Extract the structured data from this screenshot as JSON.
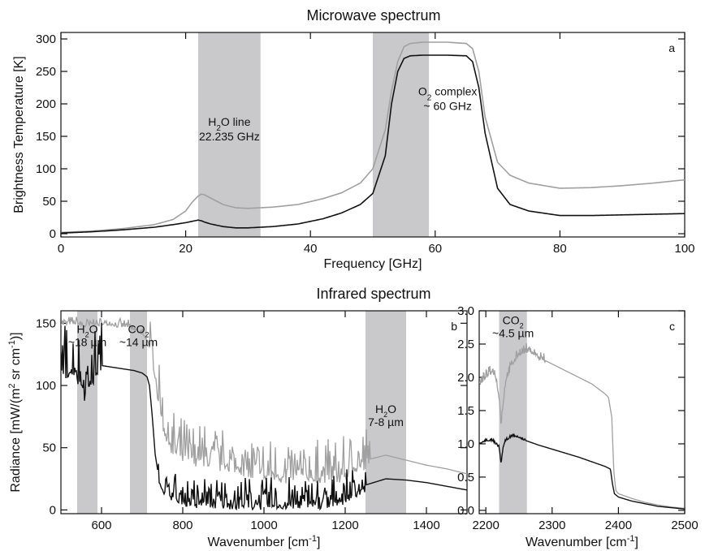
{
  "chart_data": [
    {
      "id": "a",
      "type": "line",
      "title": "Microwave spectrum",
      "panel_label": "a",
      "xlabel": "Frequency [GHz]",
      "ylabel": "Brightness Temperature [K]",
      "xlim": [
        0,
        100
      ],
      "ylim": [
        -5,
        310
      ],
      "xticks": [
        0,
        20,
        40,
        60,
        80,
        100
      ],
      "yticks": [
        0,
        50,
        100,
        150,
        200,
        250,
        300
      ],
      "bands": [
        [
          22,
          32
        ],
        [
          50,
          59
        ]
      ],
      "annotations": [
        {
          "key": "h2o_line",
          "lines": [
            "H",
            "2",
            "O line",
            "22.235 GHz"
          ],
          "x": 27,
          "y": 166
        },
        {
          "key": "o2_complex",
          "lines": [
            "O",
            "2",
            " complex",
            "~ 60 GHz"
          ],
          "x": 62,
          "y": 213
        }
      ],
      "colors": {
        "gray": "#a0a0a0",
        "black": "#111111",
        "band": "#c9c9cc"
      },
      "series": [
        {
          "color": "#a0a0a0",
          "x": [
            0,
            5,
            10,
            15,
            18,
            20,
            21,
            22,
            22.5,
            23,
            24,
            26,
            28,
            30,
            34,
            38,
            42,
            45,
            48,
            50,
            52,
            53,
            54,
            55,
            56,
            58,
            62,
            65,
            66,
            67,
            68,
            70,
            72,
            75,
            80,
            85,
            90,
            95,
            100
          ],
          "y": [
            2,
            4,
            8,
            14,
            22,
            35,
            48,
            58,
            61,
            60,
            55,
            45,
            40,
            39,
            41,
            45,
            54,
            63,
            78,
            100,
            160,
            220,
            265,
            288,
            293,
            295,
            295,
            293,
            285,
            250,
            180,
            110,
            90,
            78,
            70,
            71,
            74,
            78,
            83
          ]
        },
        {
          "color": "#111111",
          "x": [
            0,
            5,
            10,
            15,
            18,
            20,
            21,
            22,
            22.5,
            23,
            24,
            26,
            28,
            30,
            34,
            38,
            42,
            45,
            48,
            50,
            52,
            53,
            54,
            55,
            56,
            58,
            62,
            65,
            66,
            67,
            68,
            70,
            72,
            75,
            80,
            85,
            90,
            95,
            100
          ],
          "y": [
            1,
            3,
            6,
            10,
            14,
            17,
            19,
            21,
            20,
            18,
            15,
            11,
            9,
            9,
            11,
            15,
            23,
            32,
            45,
            62,
            120,
            200,
            250,
            270,
            274,
            275,
            275,
            274,
            265,
            225,
            155,
            70,
            45,
            35,
            28,
            28,
            29,
            30,
            31
          ]
        }
      ]
    },
    {
      "id": "b",
      "type": "line",
      "title": "Infrared spectrum",
      "panel_label": "b",
      "xlabel": "Wavenumber [cm",
      "xlabel_sup": "-1",
      "xlabel_end": "]",
      "ylabel": "Radiance [mW/(m",
      "ylabel_sup1": "2",
      "ylabel_mid": " sr cm",
      "ylabel_sup2": "-1",
      "ylabel_end": ")]",
      "xlim": [
        500,
        1500
      ],
      "ylim": [
        -3,
        160
      ],
      "xticks": [
        600,
        800,
        1000,
        1200,
        1400
      ],
      "yticks": [
        0,
        50,
        100,
        150
      ],
      "bands": [
        [
          540,
          590
        ],
        [
          670,
          712
        ],
        [
          1250,
          1350
        ]
      ],
      "annotations": [
        {
          "key": "h2o_18",
          "l1a": "H",
          "l1s": "2",
          "l1b": "O",
          "l2": "~18 µm",
          "x": 565,
          "y": 142
        },
        {
          "key": "co2_14",
          "l1a": "CO",
          "l1s": "2",
          "l1b": "",
          "l2": "~14 µm",
          "x": 691,
          "y": 142
        },
        {
          "key": "h2o_78",
          "l1a": "H",
          "l1s": "2",
          "l1b": "O",
          "l2": "7-8 µm",
          "x": 1300,
          "y": 78
        }
      ],
      "gray": {
        "x": [
          500,
          540,
          560,
          580,
          600,
          620,
          640,
          660,
          680,
          700,
          715,
          725,
          735,
          745,
          755,
          765,
          780,
          800,
          830,
          860,
          900,
          950,
          1000,
          1050,
          1100,
          1150,
          1200,
          1250,
          1300,
          1350,
          1400,
          1450,
          1500
        ],
        "y": [
          150,
          150,
          148,
          150,
          149,
          150,
          148,
          148,
          145,
          142,
          135,
          120,
          100,
          82,
          65,
          55,
          50,
          46,
          42,
          40,
          38,
          34,
          30,
          28,
          28,
          28,
          30,
          40,
          44,
          40,
          36,
          33,
          29
        ]
      },
      "black": {
        "x": [
          500,
          540,
          560,
          580,
          600,
          620,
          640,
          660,
          680,
          700,
          712,
          718,
          725,
          732,
          740,
          748,
          755,
          765,
          780,
          800,
          830,
          860,
          900,
          950,
          1000,
          1050,
          1100,
          1150,
          1200,
          1250,
          1300,
          1350,
          1400,
          1450,
          1500
        ],
        "y": [
          115,
          112,
          95,
          110,
          116,
          115,
          114,
          113,
          112,
          110,
          107,
          100,
          75,
          45,
          28,
          20,
          15,
          12,
          10,
          8,
          7,
          7,
          6,
          6,
          5,
          6,
          6,
          6,
          10,
          20,
          25,
          24,
          22,
          19,
          16
        ]
      },
      "noise": [
        {
          "series": "black",
          "x0": 500,
          "x1": 600,
          "amp": 38
        },
        {
          "series": "black",
          "x0": 740,
          "x1": 1250,
          "amp": 22
        },
        {
          "series": "gray",
          "x0": 720,
          "x1": 1260,
          "amp": 30
        },
        {
          "series": "gray",
          "x0": 500,
          "x1": 700,
          "amp": 6
        }
      ]
    },
    {
      "id": "c",
      "type": "line",
      "panel_label": "c",
      "xlabel": "Wavenumber [cm",
      "xlabel_sup": "-1",
      "xlabel_end": "]",
      "xlim": [
        2190,
        2500
      ],
      "ylim": [
        -0.05,
        3.0
      ],
      "xticks": [
        2200,
        2300,
        2400,
        2500
      ],
      "yticks": [
        0.0,
        0.5,
        1.0,
        1.5,
        2.0,
        2.5,
        3.0
      ],
      "ytick_labels": [
        "0.0",
        "0.5",
        "1.0",
        "1.5",
        "2.0",
        "2.5",
        "3.0"
      ],
      "bands": [
        [
          2220,
          2262
        ]
      ],
      "annotations": [
        {
          "key": "co2_45",
          "l1a": "CO",
          "l1s": "2",
          "l1b": "",
          "l2": "~4.5 µm",
          "x": 2241,
          "y": 2.8
        }
      ],
      "gray": {
        "x": [
          2190,
          2200,
          2210,
          2215,
          2220,
          2223,
          2226,
          2230,
          2240,
          2250,
          2260,
          2270,
          2280,
          2300,
          2320,
          2340,
          2360,
          2380,
          2385,
          2390,
          2393,
          2396,
          2400,
          2420,
          2440,
          2460,
          2480,
          2500
        ],
        "y": [
          1.9,
          2.0,
          2.1,
          2.0,
          1.7,
          1.3,
          1.6,
          1.95,
          2.2,
          2.35,
          2.4,
          2.38,
          2.3,
          2.2,
          2.1,
          2.0,
          1.9,
          1.75,
          1.7,
          1.4,
          0.6,
          0.3,
          0.25,
          0.18,
          0.12,
          0.08,
          0.05,
          0.03
        ]
      },
      "black": {
        "x": [
          2190,
          2200,
          2210,
          2215,
          2220,
          2223,
          2226,
          2230,
          2240,
          2250,
          2260,
          2280,
          2300,
          2320,
          2340,
          2360,
          2380,
          2388,
          2391,
          2394,
          2400,
          2420,
          2440,
          2460,
          2480,
          2500
        ],
        "y": [
          1.0,
          1.05,
          1.05,
          1.0,
          0.95,
          0.7,
          0.95,
          1.05,
          1.12,
          1.1,
          1.05,
          0.98,
          0.92,
          0.86,
          0.8,
          0.73,
          0.66,
          0.62,
          0.4,
          0.25,
          0.2,
          0.14,
          0.1,
          0.06,
          0.04,
          0.02
        ]
      },
      "noise": [
        {
          "series": "gray",
          "x0": 2190,
          "x1": 2290,
          "amp": 0.12
        },
        {
          "series": "black",
          "x0": 2190,
          "x1": 2260,
          "amp": 0.03
        }
      ]
    }
  ]
}
